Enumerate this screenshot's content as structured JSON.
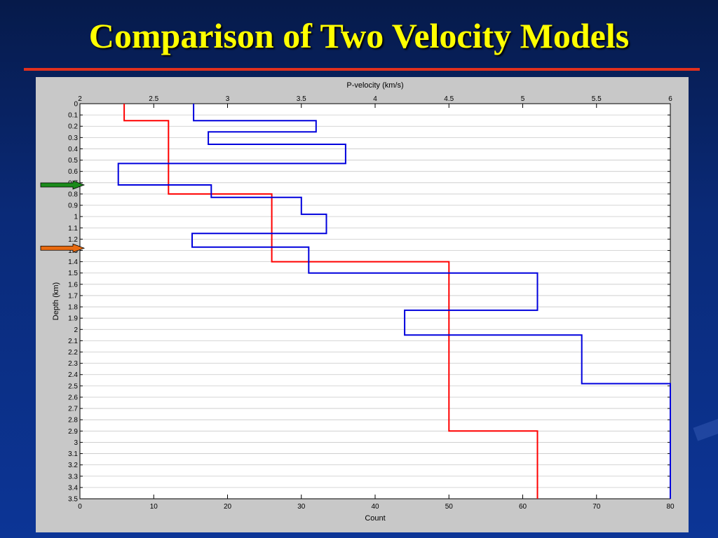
{
  "slide": {
    "title": "Comparison of Two Velocity Models",
    "accent_color": "#e0301e",
    "title_color": "#ffff00"
  },
  "chart_data": {
    "type": "line",
    "top_axis": {
      "label": "P-velocity (km/s)",
      "range": [
        2,
        6
      ],
      "ticks": [
        "2",
        "2.5",
        "3",
        "3.5",
        "4",
        "4.5",
        "5",
        "5.5",
        "6"
      ]
    },
    "bottom_axis": {
      "label": "Count",
      "range": [
        0,
        80
      ],
      "ticks": [
        "0",
        "10",
        "20",
        "30",
        "40",
        "50",
        "60",
        "70",
        "80"
      ]
    },
    "y_axis": {
      "label": "Depth (km)",
      "range": [
        0,
        3.5
      ],
      "inverted": true,
      "ticks": [
        "0",
        "0.1",
        "0.2",
        "0.3",
        "0.4",
        "0.5",
        "0.6",
        "0.7",
        "0.8",
        "0.9",
        "1",
        "1.1",
        "1.2",
        "1.3",
        "1.4",
        "1.5",
        "1.6",
        "1.7",
        "1.8",
        "1.9",
        "2",
        "2.1",
        "2.2",
        "2.3",
        "2.4",
        "2.5",
        "2.6",
        "2.7",
        "2.8",
        "2.9",
        "3",
        "3.1",
        "3.2",
        "3.3",
        "3.4",
        "3.5"
      ]
    },
    "grid": true,
    "series": [
      {
        "color": "#ff0000",
        "velocity": [
          {
            "depth": 0,
            "v": 2.3
          },
          {
            "depth": 0.15,
            "v": 2.3
          },
          {
            "depth": 0.15,
            "v": 2.6
          },
          {
            "depth": 0.8,
            "v": 2.6
          },
          {
            "depth": 0.8,
            "v": 3.3
          },
          {
            "depth": 1.4,
            "v": 3.3
          },
          {
            "depth": 1.4,
            "v": 4.5
          },
          {
            "depth": 2.9,
            "v": 4.5
          },
          {
            "depth": 2.9,
            "v": 5.1
          },
          {
            "depth": 3.5,
            "v": 5.1
          }
        ]
      },
      {
        "color": "#0000dd",
        "velocity": [
          {
            "depth": 0,
            "v": 2.77
          },
          {
            "depth": 0.15,
            "v": 2.77
          },
          {
            "depth": 0.15,
            "v": 3.6
          },
          {
            "depth": 0.25,
            "v": 3.6
          },
          {
            "depth": 0.25,
            "v": 2.87
          },
          {
            "depth": 0.36,
            "v": 2.87
          },
          {
            "depth": 0.36,
            "v": 3.8
          },
          {
            "depth": 0.53,
            "v": 3.8
          },
          {
            "depth": 0.53,
            "v": 2.26
          },
          {
            "depth": 0.72,
            "v": 2.26
          },
          {
            "depth": 0.72,
            "v": 2.89
          },
          {
            "depth": 0.83,
            "v": 2.89
          },
          {
            "depth": 0.83,
            "v": 3.5
          },
          {
            "depth": 0.98,
            "v": 3.5
          },
          {
            "depth": 0.98,
            "v": 3.67
          },
          {
            "depth": 1.15,
            "v": 3.67
          },
          {
            "depth": 1.15,
            "v": 2.76
          },
          {
            "depth": 1.27,
            "v": 2.76
          },
          {
            "depth": 1.27,
            "v": 3.55
          },
          {
            "depth": 1.5,
            "v": 3.55
          },
          {
            "depth": 1.5,
            "v": 5.1
          },
          {
            "depth": 1.83,
            "v": 5.1
          },
          {
            "depth": 1.83,
            "v": 4.2
          },
          {
            "depth": 2.05,
            "v": 4.2
          },
          {
            "depth": 2.05,
            "v": 5.4
          },
          {
            "depth": 2.48,
            "v": 5.4
          },
          {
            "depth": 2.48,
            "v": 6.0
          },
          {
            "depth": 3.5,
            "v": 6.0
          }
        ]
      }
    ],
    "markers": [
      {
        "name": "green-arrow",
        "depth": 0.72,
        "color": "#1a8a1a"
      },
      {
        "name": "orange-arrow",
        "depth": 1.28,
        "color": "#e86a10"
      }
    ]
  }
}
